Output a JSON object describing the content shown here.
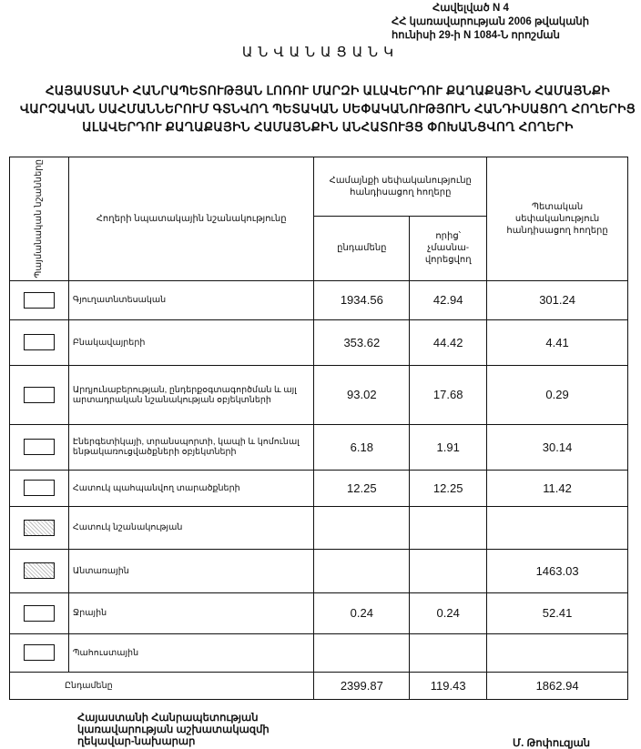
{
  "annex": {
    "line1": "Հավելված N 4",
    "line2": "ՀՀ կառավարության 2006 թվականի",
    "line3": "հունիսի 29-ի N 1084-Ն որոշման"
  },
  "title": "ԱՆՎԱՆԱՑԱՆԿ",
  "subtitle": "ՀԱՅԱՍՏԱՆԻ ՀԱՆՐԱՊԵՏՈՒԹՅԱՆ ԼՈՌՈՒ ՄԱՐԶԻ ԱԼԱՎԵՐԴՈՒ ՔԱՂԱՔԱՅԻՆ ՀԱՄԱՅՆՔԻ ՎԱՐՉԱԿԱՆ ՍԱՀՄԱՆՆԵՐՈՒՄ ԳՏՆՎՈՂ ՊԵՏԱԿԱՆ ՍԵՓԱԿԱՆՈՒԹՅՈՒՆ ՀԱՆԴԻՍԱՑՈՂ ՀՈՂԵՐԻՑ ԱԼԱՎԵՐԴՈՒ ՔԱՂԱՔԱՅԻՆ ՀԱՄԱՅՆՔԻՆ ԱՆՀԱՏՈՒՅՑ ՓՈԽԱՆՑՎՈՂ ՀՈՂԵՐԻ",
  "table": {
    "headers": {
      "symbols": "Պայմանական նշանները",
      "purpose": "Հողերի նպատակային նշանակությունը",
      "community": "Համայնքի սեփականությունը հանդիսացող հողերը",
      "total": "ընդամենը",
      "of_which": "որից՝ չմասնա-վորեցվող",
      "state": "Պետական սեփականություն հանդիսացող հողերը"
    },
    "rows": [
      {
        "label": "Գյուղատնտեսական",
        "total": "1934.56",
        "of_which": "42.94",
        "state": "301.24",
        "symbol": "blank"
      },
      {
        "label": "Բնակավայրերի",
        "total": "353.62",
        "of_which": "44.42",
        "state": "4.41",
        "symbol": "blank"
      },
      {
        "label": "Արդյունաբերության, ընդերքօգտագործման և այլ արտադրական նշանակության օբյեկտների",
        "total": "93.02",
        "of_which": "17.68",
        "state": "0.29",
        "symbol": "blank"
      },
      {
        "label": "Էներգետիկայի, տրանսպորտի, կապի և կոմունալ ենթակառուցվածքների օբյեկտների",
        "total": "6.18",
        "of_which": "1.91",
        "state": "30.14",
        "symbol": "blank"
      },
      {
        "label": "Հատուկ պահպանվող տարածքների",
        "total": "12.25",
        "of_which": "12.25",
        "state": "11.42",
        "symbol": "blank"
      },
      {
        "label": "Հատուկ նշանակության",
        "total": "",
        "of_which": "",
        "state": "",
        "symbol": "dotted"
      },
      {
        "label": "Անտառային",
        "total": "",
        "of_which": "",
        "state": "1463.03",
        "symbol": "dotted"
      },
      {
        "label": "Ջրային",
        "total": "0.24",
        "of_which": "0.24",
        "state": "52.41",
        "symbol": "blank"
      },
      {
        "label": "Պահուստային",
        "total": "",
        "of_which": "",
        "state": "",
        "symbol": "blank"
      }
    ],
    "totals": {
      "label": "Ընդամենը",
      "total": "2399.87",
      "of_which": "119.43",
      "state": "1862.94"
    }
  },
  "footer": {
    "line1": "Հայաստանի Հանրապետության",
    "line2": "կառավարության աշխատակազմի",
    "line3": "ղեկավար-նախարար",
    "signatory": "Մ. Թոփուզյան"
  }
}
